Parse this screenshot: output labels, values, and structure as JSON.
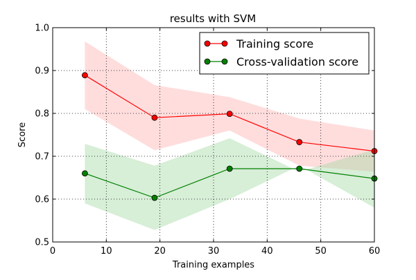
{
  "chart_data": {
    "type": "line",
    "title": "results with SVM",
    "xlabel": "Training examples",
    "ylabel": "Score",
    "xlim": [
      0,
      60
    ],
    "ylim": [
      0.5,
      1.0
    ],
    "xticks": [
      0,
      10,
      20,
      30,
      40,
      50,
      60
    ],
    "xtick_labels": [
      "0",
      "10",
      "20",
      "30",
      "40",
      "50",
      "60"
    ],
    "yticks": [
      0.5,
      0.6,
      0.7,
      0.8,
      0.9,
      1.0
    ],
    "ytick_labels": [
      "0.5",
      "0.6",
      "0.7",
      "0.8",
      "0.9",
      "1.0"
    ],
    "grid": true,
    "legend_position": "top-right",
    "x": [
      6,
      19,
      33,
      46,
      60
    ],
    "series": [
      {
        "name": "Training score",
        "color": "#ff0000",
        "band_color": "#ffb3b3",
        "values": [
          0.889,
          0.79,
          0.799,
          0.733,
          0.712
        ],
        "band_lower": [
          0.81,
          0.714,
          0.76,
          0.678,
          0.664
        ],
        "band_upper": [
          0.968,
          0.866,
          0.838,
          0.788,
          0.76
        ]
      },
      {
        "name": "Cross-validation score",
        "color": "#008000",
        "band_color": "#a6d9a6",
        "values": [
          0.66,
          0.603,
          0.671,
          0.671,
          0.648
        ],
        "band_lower": [
          0.59,
          0.528,
          0.6,
          0.678,
          0.58
        ],
        "band_upper": [
          0.729,
          0.678,
          0.742,
          0.664,
          0.716
        ]
      }
    ]
  }
}
